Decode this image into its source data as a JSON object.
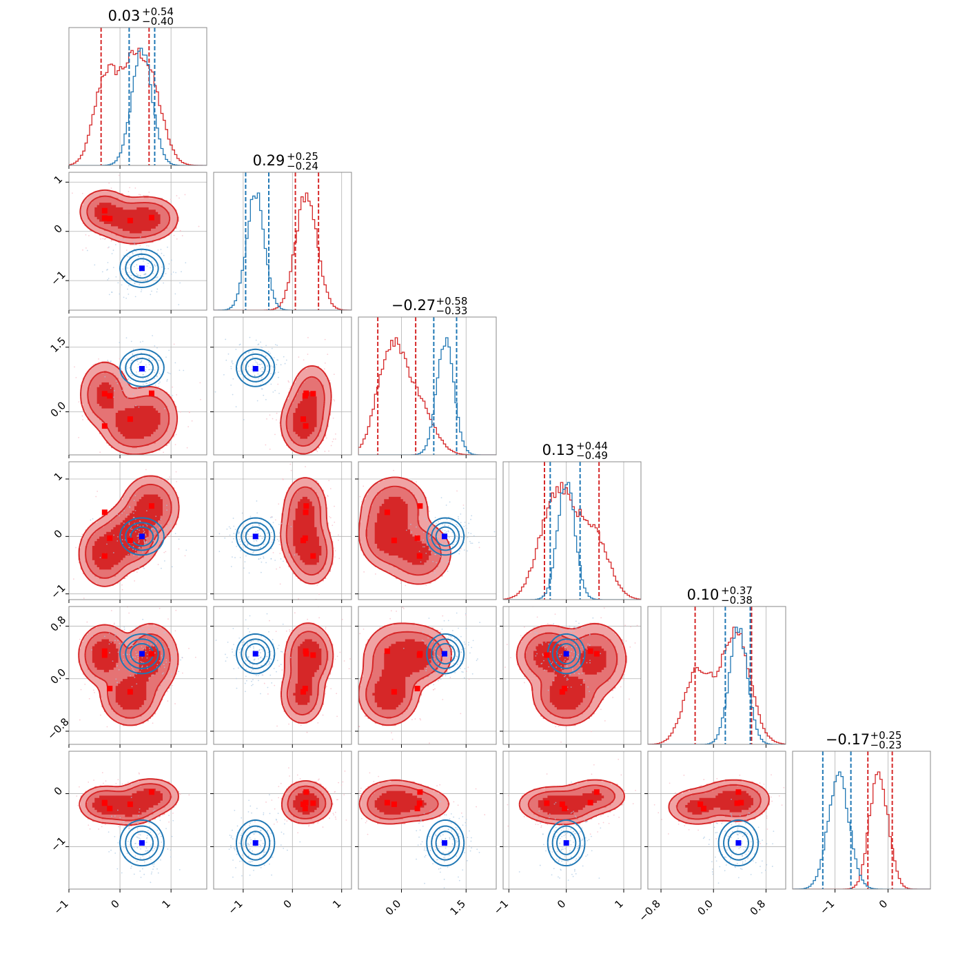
{
  "colors": {
    "red": "#d62728",
    "red_mid": "#e57374",
    "red_light": "#f0a3a4",
    "blue": "#1f77b4",
    "blue_marker": "#0000ff",
    "grid": "#b0b0b0"
  },
  "chart_data": {
    "type": "corner",
    "n_params": 6,
    "grid": true,
    "param_ranges": [
      [
        -1.0,
        1.7
      ],
      [
        -1.6,
        1.2
      ],
      [
        -1.0,
        2.2
      ],
      [
        -1.1,
        1.3
      ],
      [
        -1.0,
        1.1
      ],
      [
        -1.8,
        0.8
      ]
    ],
    "titles": [
      {
        "median": "0.03",
        "plus": "+0.54",
        "minus": "−0.40"
      },
      {
        "median": "0.29",
        "plus": "+0.25",
        "minus": "−0.24"
      },
      {
        "median": "−0.27",
        "plus": "+0.58",
        "minus": "−0.33"
      },
      {
        "median": "0.13",
        "plus": "+0.44",
        "minus": "−0.49"
      },
      {
        "median": "0.10",
        "plus": "+0.37",
        "minus": "−0.38"
      },
      {
        "median": "−0.17",
        "plus": "+0.25",
        "minus": "−0.23"
      }
    ],
    "ticks": [
      {
        "values": [
          -1,
          0,
          1
        ],
        "labels": [
          "−1",
          "0",
          "1"
        ]
      },
      {
        "values": [
          -1,
          0,
          1
        ],
        "labels": [
          "−1",
          "0",
          "1"
        ]
      },
      {
        "values": [
          0,
          1.5
        ],
        "labels": [
          "0.0",
          "1.5"
        ]
      },
      {
        "values": [
          -1,
          0,
          1
        ],
        "labels": [
          "−1",
          "0",
          "1"
        ]
      },
      {
        "values": [
          -0.8,
          0,
          0.8
        ],
        "labels": [
          "−0.8",
          "0.0",
          "0.8"
        ]
      },
      {
        "values": [
          -1,
          0
        ],
        "labels": [
          "−1",
          "0"
        ]
      }
    ],
    "series": [
      {
        "color": "red",
        "style": "filled",
        "quantile_lines": [
          [
            -0.37,
            0.57
          ],
          [
            0.06,
            0.53
          ],
          [
            -0.55,
            0.33
          ],
          [
            -0.38,
            0.57
          ],
          [
            -0.28,
            0.58
          ],
          [
            -0.38,
            0.08
          ]
        ],
        "markers": [
          [
            -0.3,
            0.42,
            0.42,
            -0.34,
            0.36,
            -0.18
          ],
          [
            -0.2,
            0.26,
            0.37,
            -0.03,
            -0.15,
            -0.28
          ],
          [
            0.2,
            0.22,
            -0.17,
            -0.07,
            -0.2,
            -0.2
          ],
          [
            0.62,
            0.28,
            0.43,
            0.53,
            0.38,
            0.03
          ],
          [
            -0.3,
            0.27,
            -0.33,
            0.42,
            0.42,
            -0.17
          ]
        ],
        "modes": [
          {
            "mean": [
              -0.3,
              0.4,
              0.4,
              -0.3,
              0.36,
              -0.2
            ],
            "sd": [
              0.22,
              0.2,
              0.35,
              0.25,
              0.2,
              0.15
            ],
            "w": 0.32
          },
          {
            "mean": [
              0.2,
              0.2,
              -0.3,
              0.0,
              -0.25,
              -0.25
            ],
            "sd": [
              0.25,
              0.2,
              0.3,
              0.25,
              0.2,
              0.15
            ],
            "w": 0.36
          },
          {
            "mean": [
              0.6,
              0.26,
              -0.15,
              0.5,
              0.3,
              -0.05
            ],
            "sd": [
              0.25,
              0.2,
              0.35,
              0.25,
              0.25,
              0.15
            ],
            "w": 0.32
          }
        ]
      },
      {
        "color": "blue",
        "style": "contour",
        "quantile_lines": [
          [
            0.18,
            0.68
          ],
          [
            -0.95,
            -0.48
          ],
          [
            0.75,
            1.28
          ],
          [
            -0.28,
            0.24
          ],
          [
            0.18,
            0.56
          ],
          [
            -1.23,
            -0.7
          ]
        ],
        "markers": [
          [
            0.43,
            -0.75,
            1.0,
            0.0,
            0.38,
            -0.93
          ]
        ],
        "modes": [
          {
            "mean": [
              0.43,
              -0.75,
              1.02,
              0.0,
              0.38,
              -0.93
            ],
            "sd": [
              0.2,
              0.18,
              0.2,
              0.15,
              0.14,
              0.2
            ],
            "w": 1.0
          }
        ]
      }
    ]
  }
}
